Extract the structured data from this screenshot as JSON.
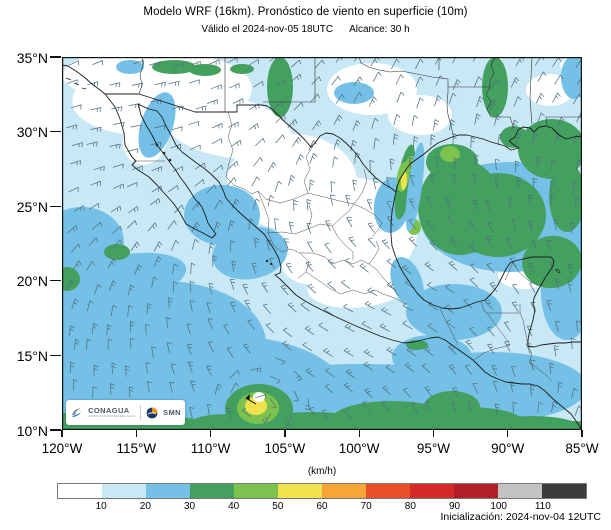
{
  "header": {
    "title": "Modelo WRF (16km). Pronóstico de viento en superficie (10m)",
    "valid": "Válido el 2024-nov-05 18UTC",
    "reach": "Alcance: 30 h"
  },
  "axes": {
    "lat_labels": [
      "35°N",
      "30°N",
      "25°N",
      "20°N",
      "15°N",
      "10°N"
    ],
    "lon_labels": [
      "120°W",
      "115°W",
      "110°W",
      "105°W",
      "100°W",
      "95°W",
      "90°W",
      "85°W"
    ]
  },
  "legend": {
    "unit": "(km/h)",
    "ticks": [
      "10",
      "20",
      "30",
      "40",
      "50",
      "60",
      "70",
      "80",
      "90",
      "100",
      "110"
    ],
    "colors": [
      "#ffffff",
      "#c9e8f6",
      "#74c0e6",
      "#43a05f",
      "#7cc24e",
      "#efe24d",
      "#f6a637",
      "#e8502a",
      "#d42b28",
      "#b21f26",
      "#c3c3c3",
      "#3b3b3b"
    ]
  },
  "branding": {
    "conagua": "CONAGUA",
    "conagua_sub": "COMISIÓN NACIONAL DEL AGUA",
    "smn": "SMN"
  },
  "footer": {
    "initialization": "Inicialización: 2024-nov-04 12UTC"
  }
}
